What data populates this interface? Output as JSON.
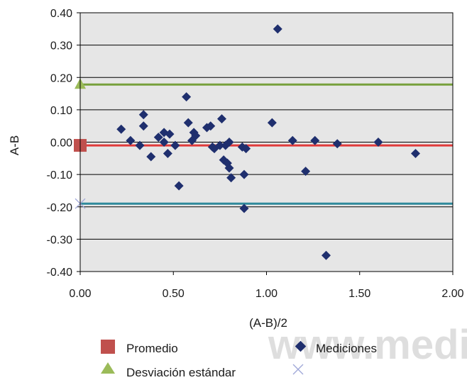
{
  "chart_data": {
    "type": "scatter",
    "xlabel": "(A-B)/2",
    "ylabel": "A-B",
    "xlim": [
      0,
      2
    ],
    "ylim": [
      -0.4,
      0.4
    ],
    "x_ticks": [
      "0.00",
      "0.50",
      "1.00",
      "1.50",
      "2.00"
    ],
    "y_ticks": [
      "0.40",
      "0.30",
      "0.20",
      "0.10",
      "0.00",
      "-0.10",
      "-0.20",
      "-0.30",
      "-0.40"
    ],
    "grid": "horizontal",
    "plot_background": "#e6e6e6",
    "reference_lines": [
      {
        "name": "Promedio",
        "y": -0.01,
        "color": "#e03a3a",
        "marker": "square",
        "marker_color": "#c0504d"
      },
      {
        "name": "Desviación estándar",
        "y": 0.178,
        "color": "#77a03c",
        "marker": "triangle",
        "marker_color": "#9bbb59"
      },
      {
        "name": "",
        "y": -0.19,
        "color": "#2f8a9c",
        "marker": "x",
        "marker_color": "#a0a8d8"
      }
    ],
    "series": [
      {
        "name": "Mediciones",
        "marker": "diamond",
        "color": "#1f2f6e",
        "points": [
          [
            0.22,
            0.04
          ],
          [
            0.27,
            0.005
          ],
          [
            0.32,
            -0.01
          ],
          [
            0.34,
            0.085
          ],
          [
            0.34,
            0.05
          ],
          [
            0.38,
            -0.045
          ],
          [
            0.42,
            0.015
          ],
          [
            0.45,
            0.0
          ],
          [
            0.45,
            0.03
          ],
          [
            0.47,
            -0.035
          ],
          [
            0.48,
            0.025
          ],
          [
            0.51,
            -0.01
          ],
          [
            0.53,
            -0.135
          ],
          [
            0.57,
            0.14
          ],
          [
            0.58,
            0.06
          ],
          [
            0.6,
            0.005
          ],
          [
            0.61,
            0.03
          ],
          [
            0.62,
            0.02
          ],
          [
            0.68,
            0.045
          ],
          [
            0.7,
            0.05
          ],
          [
            0.71,
            -0.015
          ],
          [
            0.72,
            -0.02
          ],
          [
            0.75,
            -0.01
          ],
          [
            0.76,
            0.072
          ],
          [
            0.77,
            -0.055
          ],
          [
            0.78,
            -0.01
          ],
          [
            0.79,
            -0.065
          ],
          [
            0.8,
            -0.08
          ],
          [
            0.8,
            0.0
          ],
          [
            0.81,
            -0.11
          ],
          [
            0.87,
            -0.015
          ],
          [
            0.88,
            -0.1
          ],
          [
            0.88,
            -0.205
          ],
          [
            0.89,
            -0.02
          ],
          [
            1.03,
            0.06
          ],
          [
            1.06,
            0.35
          ],
          [
            1.14,
            0.005
          ],
          [
            1.21,
            -0.09
          ],
          [
            1.26,
            0.005
          ],
          [
            1.32,
            -0.35
          ],
          [
            1.38,
            -0.005
          ],
          [
            1.6,
            0.0
          ],
          [
            1.8,
            -0.035
          ]
        ]
      }
    ],
    "legend": [
      "Promedio",
      "Mediciones",
      "Desviación estándar",
      ""
    ],
    "legend_placement": "bottom"
  },
  "watermark": "www.medig"
}
